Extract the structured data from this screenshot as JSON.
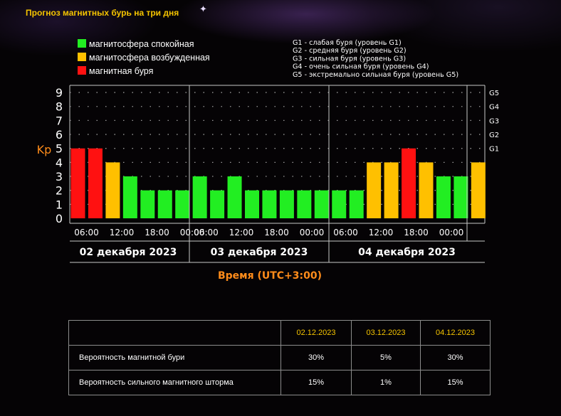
{
  "page": {
    "title": "Прогноз магнитных бурь на три дня"
  },
  "legend": {
    "items": [
      {
        "label": "магнитосфера спокойная",
        "color": "#22ee22"
      },
      {
        "label": "магнитосфера возбужденная",
        "color": "#ffc000"
      },
      {
        "label": "магнитная буря",
        "color": "#ff1111"
      }
    ],
    "g_scale": [
      "G1 - слабая буря (уровень G1)",
      "G2 - средняя буря (уровень G2)",
      "G3 - сильная буря (уровень G3)",
      "G4 - очень сильная буря (уровень G4)",
      "G5 - экстремально сильная буря (уровень G5)"
    ]
  },
  "chart_data": {
    "type": "bar",
    "ylabel": "Kp",
    "xlabel": "Время (UTC+3:00)",
    "ylim": [
      0,
      9
    ],
    "y_ticks": [
      "0",
      "1",
      "2",
      "3",
      "4",
      "5",
      "6",
      "7",
      "8",
      "9"
    ],
    "right_ticks": [
      {
        "label": "G1",
        "kp": 5
      },
      {
        "label": "G2",
        "kp": 6
      },
      {
        "label": "G3",
        "kp": 7
      },
      {
        "label": "G4",
        "kp": 8
      },
      {
        "label": "G5",
        "kp": 9
      }
    ],
    "grid": "dotted",
    "days": [
      {
        "label": "02 декабря 2023",
        "ticks": [
          "06:00",
          "12:00",
          "18:00",
          "00:00"
        ],
        "values": [
          5,
          5,
          4,
          3,
          2,
          2,
          2
        ]
      },
      {
        "label": "03 декабря 2023",
        "ticks": [
          "06:00",
          "12:00",
          "18:00",
          "00:00"
        ],
        "values": [
          3,
          2,
          3,
          2,
          2,
          2,
          2,
          2
        ]
      },
      {
        "label": "04 декабря 2023",
        "ticks": [
          "06:00",
          "12:00",
          "18:00",
          "00:00"
        ],
        "values": [
          2,
          2,
          4,
          4,
          5,
          4,
          3,
          3,
          4
        ]
      }
    ],
    "colors": {
      "quiet": "#22ee22",
      "active": "#ffc000",
      "storm": "#ff1111"
    }
  },
  "table": {
    "headers": [
      "",
      "02.12.2023",
      "03.12.2023",
      "04.12.2023"
    ],
    "rows": [
      [
        "Вероятность магнитной бури",
        "30%",
        "5%",
        "30%"
      ],
      [
        "Вероятность сильного магнитного шторма",
        "15%",
        "1%",
        "15%"
      ]
    ]
  }
}
